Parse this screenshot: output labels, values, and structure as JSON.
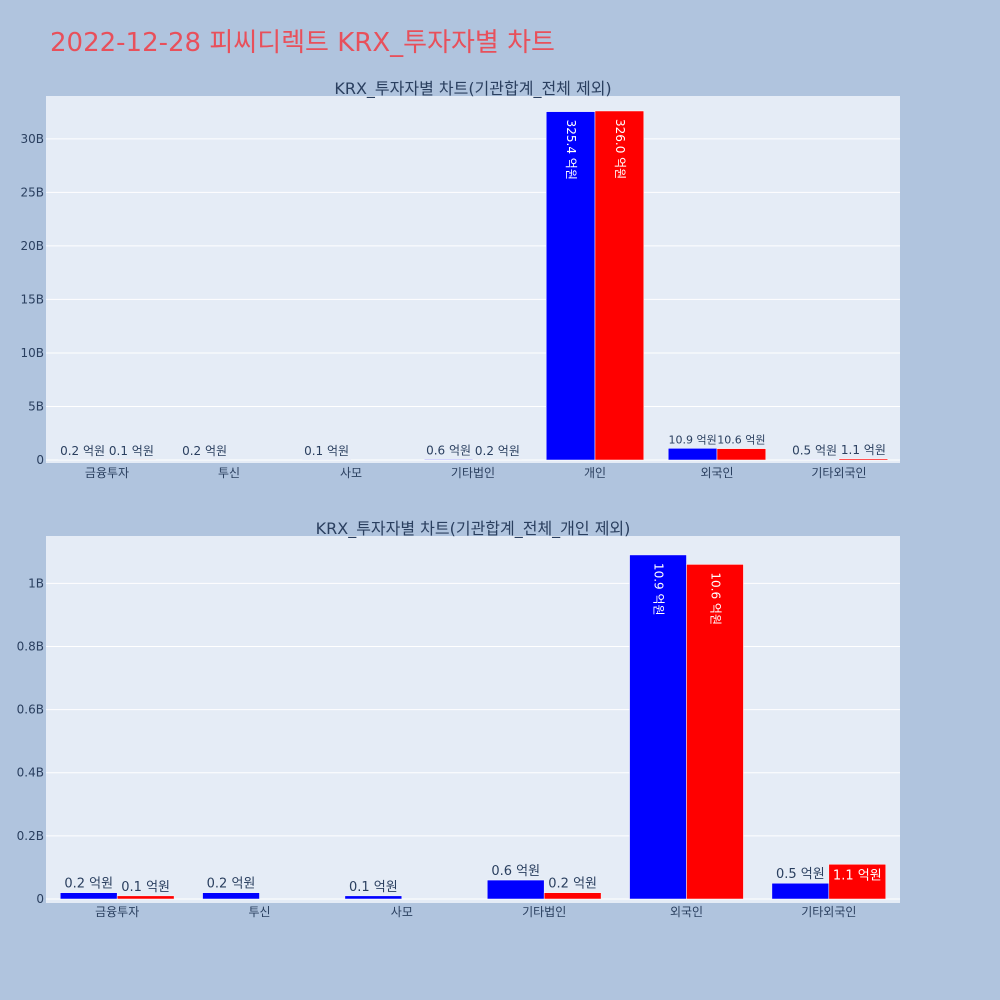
{
  "page_title": "2022-12-28 피씨디렉트 KRX_투자자별 차트",
  "colors": {
    "series_a": "#0000ff",
    "series_b": "#ff0000",
    "title": "#e8505b"
  },
  "chart_data": [
    {
      "type": "bar",
      "title": "KRX_투자자별 차트(기관합계_전체 제외)",
      "categories": [
        "금융투자",
        "투신",
        "사모",
        "기타법인",
        "개인",
        "외국인",
        "기타외국인"
      ],
      "ylim": [
        0,
        34000000000
      ],
      "yticks": [
        0,
        5000000000,
        10000000000,
        15000000000,
        20000000000,
        25000000000,
        30000000000
      ],
      "ytick_labels": [
        "0",
        "5B",
        "10B",
        "15B",
        "20B",
        "25B",
        "30B"
      ],
      "grid": true,
      "series": [
        {
          "values": [
            20000000,
            20000000,
            10000000,
            60000000,
            32540000000,
            1090000000,
            50000000
          ],
          "labels": [
            "0.2 억원",
            "0.2 억원",
            "0.1 억원",
            "0.6 억원",
            "325.4 억원",
            "10.9 억원",
            "0.5 억원"
          ]
        },
        {
          "values": [
            10000000,
            0,
            0,
            20000000,
            32600000000,
            1060000000,
            110000000
          ],
          "labels": [
            "0.1 억원",
            "",
            "",
            "0.2 억원",
            "326.0 억원",
            "10.6 억원",
            "1.1 억원"
          ]
        }
      ]
    },
    {
      "type": "bar",
      "title": "KRX_투자자별 차트(기관합계_전체_개인 제외)",
      "categories": [
        "금융투자",
        "투신",
        "사모",
        "기타법인",
        "외국인",
        "기타외국인"
      ],
      "ylim": [
        0,
        1150000000
      ],
      "yticks": [
        0,
        200000000,
        400000000,
        600000000,
        800000000,
        1000000000
      ],
      "ytick_labels": [
        "0",
        "0.2B",
        "0.4B",
        "0.6B",
        "0.8B",
        "1B"
      ],
      "grid": true,
      "series": [
        {
          "values": [
            20000000,
            20000000,
            10000000,
            60000000,
            1090000000,
            50000000
          ],
          "labels": [
            "0.2 억원",
            "0.2 억원",
            "0.1 억원",
            "0.6 억원",
            "10.9 억원",
            "0.5 억원"
          ]
        },
        {
          "values": [
            10000000,
            0,
            0,
            20000000,
            1060000000,
            110000000
          ],
          "labels": [
            "0.1 억원",
            "",
            "",
            "0.2 억원",
            "10.6 억원",
            "1.1 억원"
          ]
        }
      ]
    }
  ]
}
